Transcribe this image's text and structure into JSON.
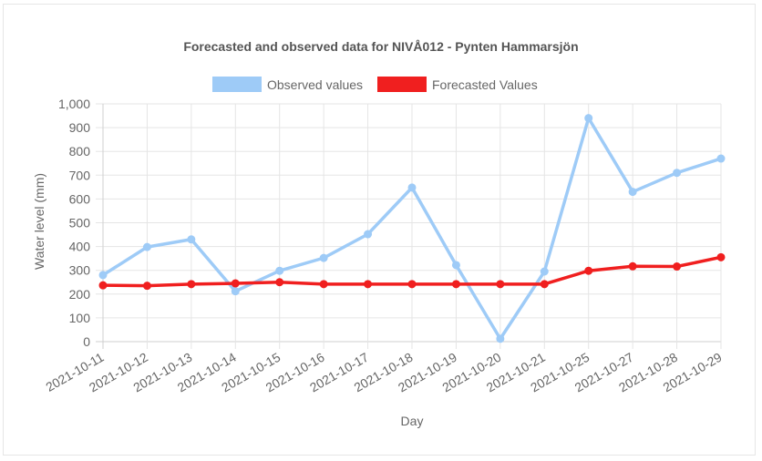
{
  "chart_data": {
    "type": "line",
    "title": "Forecasted and observed data for NIVÅ012 - Pynten Hammarsjön",
    "xlabel": "Day",
    "ylabel": "Water level (mm)",
    "ylim": [
      0,
      1000
    ],
    "yticks": [
      "0",
      "100",
      "200",
      "300",
      "400",
      "500",
      "600",
      "700",
      "800",
      "900",
      "1,000"
    ],
    "ytick_values": [
      0,
      100,
      200,
      300,
      400,
      500,
      600,
      700,
      800,
      900,
      1000
    ],
    "categories": [
      "2021-10-11",
      "2021-10-12",
      "2021-10-13",
      "2021-10-14",
      "2021-10-15",
      "2021-10-16",
      "2021-10-17",
      "2021-10-18",
      "2021-10-19",
      "2021-10-20",
      "2021-10-21",
      "2021-10-25",
      "2021-10-27",
      "2021-10-28",
      "2021-10-29"
    ],
    "series": [
      {
        "name": "Observed values",
        "color": "#9ecbf7",
        "values": [
          280,
          398,
          430,
          212,
          298,
          352,
          452,
          648,
          322,
          12,
          295,
          940,
          630,
          710,
          770
        ]
      },
      {
        "name": "Forecasted Values",
        "color": "#f01f1f",
        "values": [
          237,
          235,
          242,
          245,
          250,
          242,
          242,
          242,
          242,
          242,
          242,
          298,
          317,
          316,
          355
        ]
      }
    ],
    "grid": true,
    "legend_position": "top"
  }
}
